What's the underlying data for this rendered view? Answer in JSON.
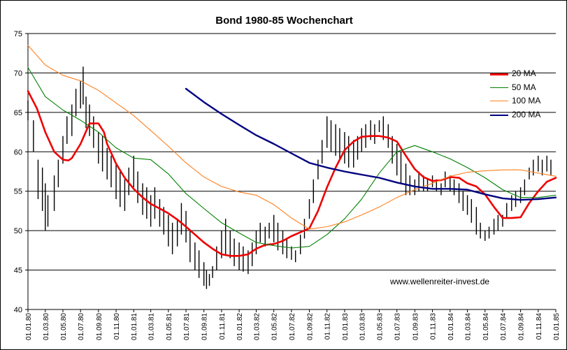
{
  "chart_data": {
    "type": "line",
    "title": "Bond 1980-85 Wochenchart",
    "watermark": "www.wellenreiter-invest.de",
    "ylim": [
      40,
      75
    ],
    "yticks": [
      40,
      45,
      50,
      55,
      60,
      65,
      70,
      75
    ],
    "xlim": [
      "1980-01-01",
      "1985-01-01"
    ],
    "xticks": [
      "01.01.80",
      "01.03.80",
      "01.05.80",
      "01.07.80",
      "01.09.80",
      "01.11.80",
      "01.01.81",
      "01.03.81",
      "01.05.81",
      "01.07.81",
      "01.09.81",
      "01.11.81",
      "01.01.82",
      "01.03.82",
      "01.05.82",
      "01.07.82",
      "01.09.82",
      "01.11.82",
      "01.01.83",
      "01.03.83",
      "01.05.83",
      "01.07.83",
      "01.09.83",
      "01.11.83",
      "01.01.84",
      "01.03.84",
      "01.05.84",
      "01.07.84",
      "01.09.84",
      "01.11.84",
      "01.01.85"
    ],
    "legend_position": "top-right",
    "grid": "horizontal",
    "price_series": {
      "style": "high-low bars",
      "color": "#000000",
      "x": [
        "1980-01-01",
        "1980-01-20",
        "1980-02-05",
        "1980-02-20",
        "1980-03-01",
        "1980-03-10",
        "1980-04-01",
        "1980-04-15",
        "1980-05-01",
        "1980-05-15",
        "1980-06-01",
        "1980-06-15",
        "1980-07-01",
        "1980-07-10",
        "1980-07-20",
        "1980-08-01",
        "1980-08-15",
        "1980-09-01",
        "1980-09-15",
        "1980-10-01",
        "1980-10-15",
        "1980-11-01",
        "1980-11-15",
        "1980-12-01",
        "1980-12-15",
        "1981-01-01",
        "1981-01-15",
        "1981-02-01",
        "1981-02-15",
        "1981-03-01",
        "1981-03-15",
        "1981-04-01",
        "1981-04-15",
        "1981-05-01",
        "1981-05-15",
        "1981-06-01",
        "1981-06-15",
        "1981-07-01",
        "1981-07-15",
        "1981-08-01",
        "1981-08-15",
        "1981-09-01",
        "1981-09-10",
        "1981-09-20",
        "1981-10-01",
        "1981-10-15",
        "1981-11-01",
        "1981-11-15",
        "1981-12-01",
        "1981-12-15",
        "1982-01-01",
        "1982-01-15",
        "1982-02-01",
        "1982-02-15",
        "1982-03-01",
        "1982-03-15",
        "1982-04-01",
        "1982-04-15",
        "1982-05-01",
        "1982-05-15",
        "1982-06-01",
        "1982-06-15",
        "1982-07-01",
        "1982-07-15",
        "1982-08-01",
        "1982-08-15",
        "1982-09-01",
        "1982-09-15",
        "1982-10-01",
        "1982-10-15",
        "1982-11-01",
        "1982-11-15",
        "1982-12-01",
        "1982-12-15",
        "1983-01-01",
        "1983-01-15",
        "1983-02-01",
        "1983-02-15",
        "1983-03-01",
        "1983-03-15",
        "1983-04-01",
        "1983-04-15",
        "1983-05-01",
        "1983-05-15",
        "1983-06-01",
        "1983-06-15",
        "1983-07-01",
        "1983-07-15",
        "1983-08-01",
        "1983-08-15",
        "1983-09-01",
        "1983-09-15",
        "1983-10-01",
        "1983-10-15",
        "1983-11-01",
        "1983-11-15",
        "1983-12-01",
        "1983-12-15",
        "1984-01-01",
        "1984-01-15",
        "1984-02-01",
        "1984-02-15",
        "1984-03-01",
        "1984-03-15",
        "1984-04-01",
        "1984-04-15",
        "1984-05-01",
        "1984-05-15",
        "1984-06-01",
        "1984-06-15",
        "1984-07-01",
        "1984-07-15",
        "1984-08-01",
        "1984-08-15",
        "1984-09-01",
        "1984-09-15",
        "1984-10-01",
        "1984-10-15",
        "1984-11-01",
        "1984-11-15",
        "1984-12-01",
        "1984-12-15"
      ],
      "high": [
        66.5,
        64.0,
        59.0,
        58.0,
        56.0,
        54.5,
        57.0,
        59.0,
        62.0,
        64.5,
        66.0,
        68.0,
        69.0,
        70.8,
        67.0,
        66.0,
        64.5,
        62.5,
        62.0,
        60.5,
        59.5,
        58.5,
        57.5,
        56.5,
        58.0,
        59.5,
        57.5,
        56.0,
        55.5,
        54.5,
        55.5,
        54.0,
        53.0,
        52.0,
        51.0,
        51.5,
        53.5,
        52.5,
        50.0,
        48.5,
        47.5,
        46.0,
        45.0,
        44.5,
        45.5,
        48.0,
        50.0,
        51.5,
        50.0,
        49.0,
        48.5,
        48.0,
        47.5,
        48.5,
        50.0,
        51.0,
        50.5,
        51.0,
        52.0,
        51.0,
        50.0,
        49.0,
        48.0,
        47.5,
        49.5,
        51.5,
        54.0,
        56.5,
        59.0,
        61.5,
        64.5,
        64.0,
        63.5,
        63.0,
        62.5,
        62.0,
        61.5,
        62.0,
        63.0,
        63.5,
        64.0,
        63.5,
        64.0,
        64.5,
        63.5,
        62.0,
        61.0,
        60.0,
        58.5,
        57.0,
        56.5,
        57.5,
        57.0,
        56.5,
        57.0,
        56.5,
        56.0,
        57.5,
        57.0,
        56.5,
        56.0,
        55.0,
        54.5,
        54.0,
        53.0,
        51.0,
        50.0,
        50.5,
        51.5,
        52.0,
        52.0,
        53.5,
        54.5,
        55.0,
        55.5,
        56.5,
        58.0,
        59.0,
        59.5,
        59.0,
        59.5,
        59.0
      ],
      "low": [
        64.0,
        60.0,
        54.0,
        52.5,
        50.0,
        50.5,
        52.5,
        55.5,
        58.5,
        61.0,
        62.0,
        64.5,
        65.5,
        66.0,
        63.0,
        62.0,
        60.5,
        58.5,
        57.5,
        56.5,
        55.5,
        54.0,
        53.0,
        52.5,
        54.5,
        55.5,
        53.5,
        52.0,
        51.5,
        50.5,
        51.5,
        50.5,
        49.5,
        48.0,
        47.0,
        48.0,
        49.5,
        48.5,
        46.0,
        45.0,
        44.0,
        43.0,
        42.6,
        43.0,
        44.0,
        45.0,
        46.5,
        47.0,
        46.5,
        45.5,
        45.0,
        44.8,
        44.5,
        45.5,
        47.0,
        48.5,
        48.0,
        49.0,
        48.5,
        47.5,
        47.0,
        46.5,
        46.3,
        46.0,
        47.0,
        49.0,
        51.5,
        53.5,
        56.5,
        58.5,
        60.5,
        60.0,
        59.5,
        59.0,
        58.5,
        58.0,
        58.0,
        59.0,
        60.0,
        60.5,
        61.5,
        61.0,
        62.5,
        61.5,
        60.5,
        58.5,
        57.0,
        56.0,
        54.5,
        54.5,
        54.5,
        55.0,
        55.0,
        55.0,
        55.5,
        55.0,
        54.5,
        55.5,
        55.0,
        54.5,
        53.5,
        52.5,
        52.0,
        51.0,
        49.5,
        49.0,
        48.7,
        49.0,
        49.5,
        50.0,
        50.5,
        51.5,
        52.5,
        53.0,
        53.5,
        54.5,
        56.5,
        57.0,
        57.5,
        57.0,
        57.5,
        57.0
      ]
    },
    "series": [
      {
        "name": "20 MA",
        "color": "#ee0000",
        "x": [
          "1980-01-01",
          "1980-02-01",
          "1980-03-01",
          "1980-04-01",
          "1980-05-01",
          "1980-05-20",
          "1980-06-01",
          "1980-07-01",
          "1980-08-01",
          "1980-09-01",
          "1980-09-20",
          "1980-10-01",
          "1980-11-01",
          "1980-12-01",
          "1981-01-01",
          "1981-02-01",
          "1981-03-01",
          "1981-04-01",
          "1981-05-01",
          "1981-06-01",
          "1981-07-01",
          "1981-08-01",
          "1981-09-01",
          "1981-10-01",
          "1981-11-01",
          "1981-12-01",
          "1982-01-01",
          "1982-02-01",
          "1982-03-01",
          "1982-04-01",
          "1982-05-01",
          "1982-06-01",
          "1982-07-01",
          "1982-08-01",
          "1982-09-01",
          "1982-10-01",
          "1982-11-01",
          "1982-12-01",
          "1983-01-01",
          "1983-02-01",
          "1983-03-01",
          "1983-04-01",
          "1983-05-01",
          "1983-06-01",
          "1983-07-01",
          "1983-08-01",
          "1983-09-01",
          "1983-10-01",
          "1983-11-01",
          "1983-12-01",
          "1984-01-01",
          "1984-02-01",
          "1984-03-01",
          "1984-04-01",
          "1984-05-01",
          "1984-06-01",
          "1984-07-01",
          "1984-08-01",
          "1984-09-01",
          "1984-10-01",
          "1984-11-01",
          "1984-12-01",
          "1985-01-01"
        ],
        "y": [
          67.7,
          65.5,
          62.5,
          60.0,
          59.0,
          58.9,
          59.2,
          61.0,
          63.6,
          63.6,
          62.5,
          61.0,
          58.5,
          56.7,
          55.3,
          54.2,
          53.4,
          52.8,
          52.2,
          51.4,
          50.5,
          49.5,
          48.5,
          47.7,
          47.0,
          46.8,
          46.8,
          47.0,
          47.7,
          48.2,
          48.3,
          48.7,
          49.3,
          49.8,
          50.3,
          52.5,
          55.5,
          58.0,
          60.2,
          61.3,
          61.9,
          62.0,
          62.0,
          61.8,
          61.3,
          59.5,
          57.8,
          56.8,
          56.3,
          56.4,
          56.8,
          56.7,
          56.0,
          55.6,
          54.6,
          53.0,
          51.6,
          51.6,
          51.7,
          53.5,
          55.0,
          56.2,
          56.7
        ]
      },
      {
        "name": "50 MA",
        "color": "#008000",
        "x": [
          "1980-01-01",
          "1980-03-01",
          "1980-05-01",
          "1980-07-01",
          "1980-09-01",
          "1980-11-01",
          "1981-01-01",
          "1981-03-01",
          "1981-05-01",
          "1981-07-01",
          "1981-09-01",
          "1981-11-01",
          "1982-01-01",
          "1982-03-01",
          "1982-05-01",
          "1982-07-01",
          "1982-09-01",
          "1982-11-01",
          "1983-01-01",
          "1983-03-01",
          "1983-05-01",
          "1983-07-01",
          "1983-09-01",
          "1983-11-01",
          "1984-01-01",
          "1984-03-01",
          "1984-05-01",
          "1984-07-01",
          "1984-09-01",
          "1984-11-01",
          "1985-01-01"
        ],
        "y": [
          70.7,
          67.0,
          65.3,
          64.0,
          62.5,
          60.5,
          59.2,
          59.0,
          57.2,
          54.7,
          52.8,
          51.0,
          49.7,
          48.5,
          48.1,
          47.8,
          48.0,
          49.5,
          51.5,
          54.0,
          57.3,
          60.0,
          60.8,
          60.0,
          59.1,
          58.0,
          56.7,
          55.2,
          54.2,
          54.2,
          54.5
        ]
      },
      {
        "name": "100 MA",
        "color": "#ff8020",
        "x": [
          "1980-01-01",
          "1980-03-01",
          "1980-05-01",
          "1980-07-01",
          "1980-09-01",
          "1980-11-01",
          "1981-01-01",
          "1981-03-01",
          "1981-05-01",
          "1981-07-01",
          "1981-09-01",
          "1981-11-01",
          "1982-01-01",
          "1982-03-01",
          "1982-05-01",
          "1982-07-01",
          "1982-09-01",
          "1982-11-01",
          "1983-01-01",
          "1983-03-01",
          "1983-05-01",
          "1983-07-01",
          "1983-09-01",
          "1983-11-01",
          "1984-01-01",
          "1984-03-01",
          "1984-05-01",
          "1984-07-01",
          "1984-09-01",
          "1984-11-01",
          "1985-01-01"
        ],
        "y": [
          73.5,
          71.0,
          69.7,
          69.0,
          67.8,
          66.2,
          64.6,
          62.7,
          60.7,
          58.6,
          56.8,
          55.6,
          54.9,
          54.5,
          53.3,
          51.6,
          50.2,
          50.5,
          51.1,
          52.0,
          53.0,
          54.2,
          55.2,
          56.0,
          56.9,
          57.4,
          57.6,
          57.7,
          57.7,
          57.3,
          56.9
        ]
      },
      {
        "name": "200 MA",
        "color": "#000080",
        "x": [
          "1981-07-01",
          "1981-09-01",
          "1981-11-01",
          "1982-01-01",
          "1982-03-01",
          "1982-05-01",
          "1982-07-01",
          "1982-09-01",
          "1982-11-01",
          "1983-01-01",
          "1983-03-01",
          "1983-05-01",
          "1983-07-01",
          "1983-09-01",
          "1983-11-01",
          "1984-01-01",
          "1984-03-01",
          "1984-05-01",
          "1984-07-01",
          "1984-09-01",
          "1984-11-01",
          "1985-01-01"
        ],
        "y": [
          68.0,
          66.3,
          64.8,
          63.4,
          62.1,
          61.0,
          59.8,
          58.6,
          58.0,
          57.5,
          57.1,
          56.7,
          56.1,
          55.6,
          55.3,
          55.3,
          55.2,
          54.6,
          54.1,
          53.9,
          54.0,
          54.2
        ]
      }
    ]
  }
}
